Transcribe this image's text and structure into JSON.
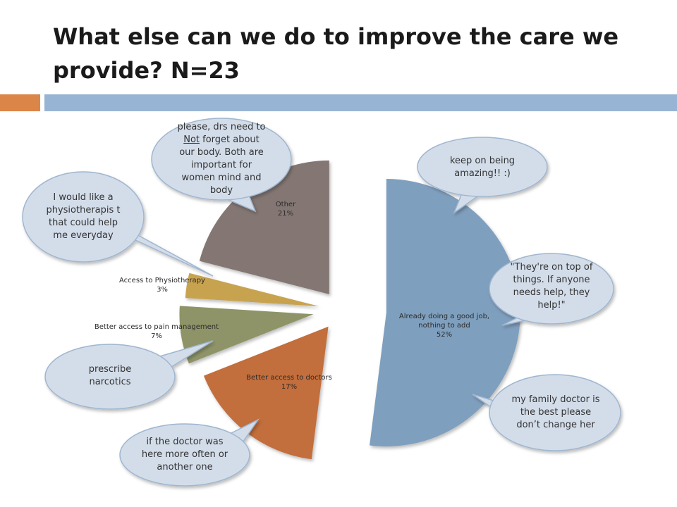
{
  "title": "What else can we do to improve the care we provide? N=23",
  "colors": {
    "accent_orange": "#dc8549",
    "accent_blue": "#98b4d4",
    "bubble_fill": "#d3ddea",
    "bubble_stroke": "#9fb6cf"
  },
  "chart_data": {
    "type": "pie",
    "exploded": true,
    "slices": [
      {
        "label": "Already doing a good job, nothing to add",
        "value": 52,
        "percent_label": "52%",
        "color": "#7f9fbe"
      },
      {
        "label": "Better access to doctors",
        "value": 17,
        "percent_label": "17%",
        "color": "#c26e3d"
      },
      {
        "label": "Better access to pain management",
        "value": 7,
        "percent_label": "7%",
        "color": "#8f9468"
      },
      {
        "label": "Access to Physiotherapy",
        "value": 3,
        "percent_label": "3%",
        "color": "#c8a350"
      },
      {
        "label": "Other",
        "value": 21,
        "percent_label": "21%",
        "color": "#847773"
      }
    ]
  },
  "comments": {
    "drs_body": {
      "line1": "please, drs need to",
      "not_word": "Not",
      "line2_rest": " forget about",
      "line3": "our body. Both are",
      "line4": "important for",
      "line5": "women mind and",
      "line6": "body"
    },
    "physio": "I would like a physiotherapis t that could help me everyday",
    "amazing": "keep on being amazing!! :)",
    "on_top": "\"They're on top of things. If anyone needs help, they help!\"",
    "family_doctor": "my family doctor is the best please don’t change her",
    "narcotics": "prescribe narcotics",
    "doctor_often": "if the doctor was here more often or another one"
  }
}
